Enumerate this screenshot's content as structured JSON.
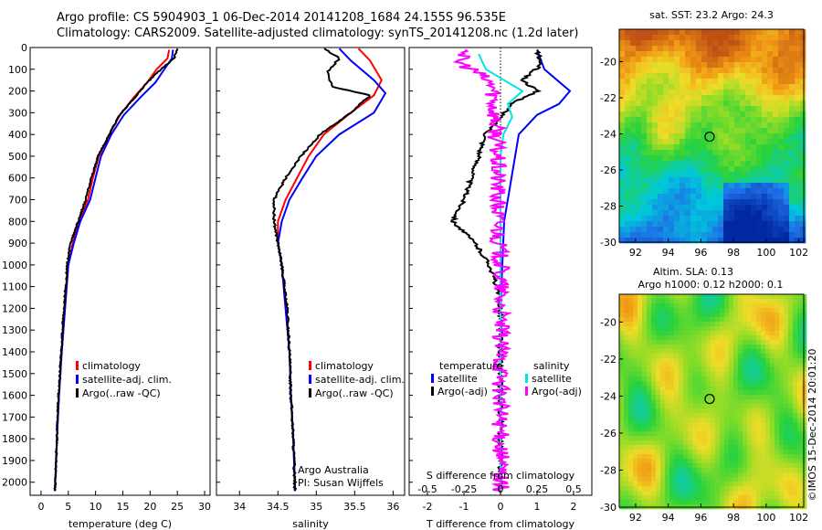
{
  "header": {
    "line1": "Argo profile: CS 5904903_1 06-Dec-2014 20141208_1684 24.155S 96.535E",
    "line2": "Climatology: CARS2009. Satellite-adjusted climatology: synTS_20141208.nc (1.2d later)"
  },
  "colors": {
    "climatology": "#ff0000",
    "satellite": "#0000ff",
    "argo": "#000000",
    "sal_sat": "#00e5e5",
    "sal_argo": "#ff00ff"
  },
  "chart_data": [
    {
      "id": "temperature",
      "type": "line",
      "xlabel": "temperature (deg C)",
      "ylabel": "",
      "xlim": [
        -2,
        31
      ],
      "ylim": [
        2060,
        0
      ],
      "xticks": [
        0,
        5,
        10,
        15,
        20,
        25,
        30
      ],
      "yticks": [
        0,
        100,
        200,
        300,
        400,
        500,
        600,
        700,
        800,
        900,
        1000,
        1100,
        1200,
        1300,
        1400,
        1500,
        1600,
        1700,
        1800,
        1900,
        2000
      ],
      "legend": {
        "position": "lower-middle",
        "entries": [
          "climatology",
          "satellite-adj. clim.",
          "Argo(..raw -QC)"
        ]
      },
      "series": [
        {
          "name": "climatology",
          "color": "#ff0000",
          "points": [
            [
              23.5,
              10
            ],
            [
              23.2,
              50
            ],
            [
              21.2,
              100
            ],
            [
              19.5,
              160
            ],
            [
              17.0,
              230
            ],
            [
              14.5,
              310
            ],
            [
              12.5,
              400
            ],
            [
              10.6,
              500
            ],
            [
              9.5,
              600
            ],
            [
              8.6,
              700
            ],
            [
              7.0,
              800
            ],
            [
              5.8,
              900
            ],
            [
              5.0,
              1000
            ],
            [
              4.4,
              1200
            ],
            [
              3.8,
              1400
            ],
            [
              3.3,
              1600
            ],
            [
              2.9,
              1800
            ],
            [
              2.6,
              2000
            ],
            [
              2.5,
              2040
            ]
          ]
        },
        {
          "name": "satellite-adj. clim.",
          "color": "#0000ff",
          "points": [
            [
              24.2,
              10
            ],
            [
              24.0,
              50
            ],
            [
              22.6,
              100
            ],
            [
              21.0,
              160
            ],
            [
              18.2,
              230
            ],
            [
              15.2,
              310
            ],
            [
              12.9,
              400
            ],
            [
              11.0,
              500
            ],
            [
              10.0,
              600
            ],
            [
              9.0,
              700
            ],
            [
              7.2,
              800
            ],
            [
              6.0,
              900
            ],
            [
              5.0,
              1000
            ],
            [
              4.4,
              1200
            ],
            [
              3.8,
              1400
            ],
            [
              3.3,
              1600
            ],
            [
              2.9,
              1800
            ],
            [
              2.6,
              2000
            ],
            [
              2.5,
              2040
            ]
          ]
        },
        {
          "name": "Argo(..raw -QC)",
          "color": "#000000",
          "points": [
            [
              25.0,
              5
            ],
            [
              24.4,
              50
            ],
            [
              22.0,
              100
            ],
            [
              19.5,
              160
            ],
            [
              17.2,
              230
            ],
            [
              14.4,
              310
            ],
            [
              12.5,
              400
            ],
            [
              10.5,
              500
            ],
            [
              9.2,
              600
            ],
            [
              8.2,
              700
            ],
            [
              6.8,
              800
            ],
            [
              5.4,
              900
            ],
            [
              4.8,
              1000
            ],
            [
              4.2,
              1200
            ],
            [
              3.7,
              1400
            ],
            [
              3.2,
              1600
            ],
            [
              2.9,
              1800
            ],
            [
              2.6,
              2000
            ],
            [
              2.5,
              2040
            ]
          ]
        }
      ]
    },
    {
      "id": "salinity",
      "type": "line",
      "xlabel": "salinity",
      "ylabel": "",
      "xlim": [
        33.7,
        36.15
      ],
      "ylim": [
        2060,
        0
      ],
      "xticks": [
        34,
        34.5,
        35,
        35.5,
        36
      ],
      "legend": {
        "position": "lower-middle",
        "entries": [
          "climatology",
          "satellite-adj. clim.",
          "Argo(..raw -QC)"
        ]
      },
      "annotation": [
        "Argo Australia",
        "PI: Susan Wijffels"
      ],
      "series": [
        {
          "name": "climatology",
          "color": "#ff0000",
          "points": [
            [
              35.55,
              5
            ],
            [
              35.7,
              60
            ],
            [
              35.85,
              150
            ],
            [
              35.75,
              220
            ],
            [
              35.45,
              300
            ],
            [
              35.1,
              400
            ],
            [
              34.9,
              500
            ],
            [
              34.75,
              600
            ],
            [
              34.6,
              700
            ],
            [
              34.5,
              800
            ],
            [
              34.5,
              900
            ],
            [
              34.55,
              1000
            ],
            [
              34.6,
              1200
            ],
            [
              34.65,
              1400
            ],
            [
              34.67,
              1600
            ],
            [
              34.7,
              1800
            ],
            [
              34.72,
              2000
            ],
            [
              34.72,
              2040
            ]
          ]
        },
        {
          "name": "satellite-adj. clim.",
          "color": "#0000ff",
          "points": [
            [
              35.3,
              5
            ],
            [
              35.45,
              60
            ],
            [
              35.75,
              150
            ],
            [
              35.9,
              210
            ],
            [
              35.75,
              300
            ],
            [
              35.3,
              400
            ],
            [
              35.0,
              500
            ],
            [
              34.82,
              600
            ],
            [
              34.65,
              700
            ],
            [
              34.55,
              800
            ],
            [
              34.5,
              900
            ],
            [
              34.55,
              1000
            ],
            [
              34.6,
              1200
            ],
            [
              34.65,
              1400
            ],
            [
              34.67,
              1600
            ],
            [
              34.7,
              1800
            ],
            [
              34.72,
              2000
            ],
            [
              34.72,
              2040
            ]
          ]
        },
        {
          "name": "Argo(..raw -QC)",
          "color": "#000000",
          "points": [
            [
              35.1,
              5
            ],
            [
              35.3,
              50
            ],
            [
              35.15,
              110
            ],
            [
              35.2,
              180
            ],
            [
              35.7,
              220
            ],
            [
              35.45,
              300
            ],
            [
              35.05,
              400
            ],
            [
              34.8,
              500
            ],
            [
              34.6,
              600
            ],
            [
              34.45,
              700
            ],
            [
              34.45,
              800
            ],
            [
              34.5,
              900
            ],
            [
              34.55,
              1000
            ],
            [
              34.62,
              1200
            ],
            [
              34.65,
              1400
            ],
            [
              34.67,
              1600
            ],
            [
              34.7,
              1800
            ],
            [
              34.72,
              2000
            ],
            [
              34.72,
              2040
            ]
          ]
        }
      ]
    },
    {
      "id": "difference",
      "type": "line",
      "xlabel": "T difference from climatology",
      "xlabel_top": "S difference from climatology",
      "xlim": [
        -2.5,
        2.5
      ],
      "ylim": [
        2060,
        0
      ],
      "xticks": [
        -2,
        -1,
        0,
        1,
        2
      ],
      "xticks_top": [
        -0.5,
        -0.25,
        0,
        0.25,
        0.5
      ],
      "legend": {
        "position": "lower",
        "headers": [
          "temperature",
          "salinity"
        ],
        "entries": [
          "satellite",
          "Argo(-adj)",
          "satellite",
          "Argo(-adj)"
        ]
      },
      "series": [
        {
          "name": "temperature satellite",
          "color": "#0000ff",
          "points": [
            [
              1.0,
              10
            ],
            [
              1.2,
              100
            ],
            [
              1.9,
              200
            ],
            [
              1.6,
              260
            ],
            [
              1.0,
              310
            ],
            [
              0.5,
              400
            ],
            [
              0.4,
              500
            ],
            [
              0.3,
              600
            ],
            [
              0.2,
              700
            ],
            [
              0.1,
              800
            ],
            [
              0.05,
              1000
            ],
            [
              0,
              1200
            ],
            [
              0,
              2040
            ]
          ]
        },
        {
          "name": "temperature Argo(-adj)",
          "color": "#000000",
          "points": [
            [
              1.0,
              10
            ],
            [
              1.1,
              80
            ],
            [
              0.6,
              150
            ],
            [
              1.0,
              200
            ],
            [
              0.3,
              260
            ],
            [
              0.0,
              320
            ],
            [
              -0.4,
              400
            ],
            [
              -0.6,
              500
            ],
            [
              -0.8,
              600
            ],
            [
              -1.0,
              700
            ],
            [
              -1.3,
              800
            ],
            [
              -0.7,
              900
            ],
            [
              -0.3,
              1000
            ],
            [
              -0.1,
              1100
            ],
            [
              0,
              1200
            ],
            [
              0,
              2040
            ]
          ]
        },
        {
          "name": "salinity satellite",
          "color": "#00e5e5",
          "points": [
            [
              -0.15,
              30
            ],
            [
              -0.1,
              100
            ],
            [
              0.15,
              200
            ],
            [
              0.05,
              260
            ],
            [
              0.08,
              320
            ],
            [
              0.02,
              400
            ],
            [
              0,
              500
            ],
            [
              0,
              700
            ],
            [
              0,
              2040
            ]
          ]
        },
        {
          "name": "salinity Argo(-adj)",
          "color": "#ff00ff",
          "points": [
            [
              -0.2,
              10
            ],
            [
              -0.3,
              60
            ],
            [
              -0.15,
              120
            ],
            [
              -0.05,
              180
            ],
            [
              -0.04,
              300
            ],
            [
              -0.03,
              400
            ],
            [
              -0.02,
              600
            ],
            [
              -0.02,
              800
            ],
            [
              0,
              1000
            ],
            [
              0,
              2040
            ]
          ]
        }
      ]
    },
    {
      "id": "sst_map",
      "type": "heatmap",
      "title": "sat. SST: 23.2  Argo: 24.3",
      "xticks": [
        92,
        94,
        96,
        98,
        100,
        102
      ],
      "yticks": [
        -20,
        -22,
        -24,
        -26,
        -28,
        -30
      ],
      "xlim": [
        91,
        102.3
      ],
      "ylim": [
        -30,
        -18.2
      ],
      "marker": {
        "lon": 96.535,
        "lat": -24.155
      }
    },
    {
      "id": "sla_map",
      "type": "heatmap",
      "title": "Altim. SLA: 0.13",
      "subtitle": "Argo h1000: 0.12  h2000: 0.1",
      "xticks": [
        92,
        94,
        96,
        98,
        100,
        102
      ],
      "yticks": [
        -20,
        -22,
        -24,
        -26,
        -28,
        -30
      ],
      "xlim": [
        91,
        102.3
      ],
      "ylim": [
        -30,
        -18.5
      ],
      "marker": {
        "lon": 96.535,
        "lat": -24.155
      }
    }
  ],
  "watermark": "©IMOS 15-Dec-2014 20:01:20"
}
